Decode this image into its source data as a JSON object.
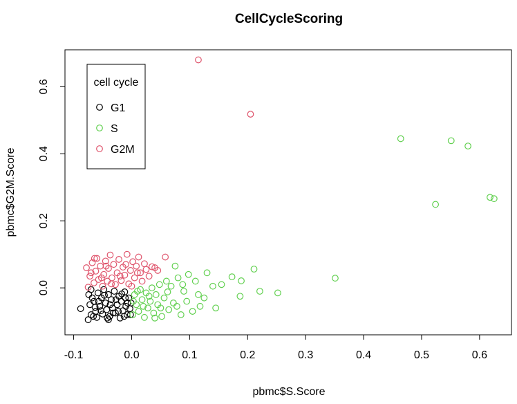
{
  "chart_data": {
    "type": "scatter",
    "title": "CellCycleScoring",
    "xlabel": "pbmc$S.Score",
    "ylabel": "pbmc$G2M.Score",
    "xlim": [
      -0.115,
      0.655
    ],
    "ylim": [
      -0.14,
      0.71
    ],
    "x_ticks": [
      "-0.1",
      "0.0",
      "0.1",
      "0.2",
      "0.3",
      "0.4",
      "0.5",
      "0.6"
    ],
    "x_tick_values": [
      -0.1,
      0.0,
      0.1,
      0.2,
      0.3,
      0.4,
      0.5,
      0.6
    ],
    "y_ticks": [
      "0.0",
      "0.2",
      "0.4",
      "0.6"
    ],
    "y_tick_values": [
      0.0,
      0.2,
      0.4,
      0.6
    ],
    "grid": false,
    "marker": "open-circle",
    "legend": {
      "title": "cell cycle",
      "placement": "top-left"
    },
    "series": [
      {
        "name": "G1",
        "color": "#000000",
        "points": [
          [
            -0.088,
            -0.062
          ],
          [
            -0.075,
            -0.095
          ],
          [
            -0.07,
            -0.08
          ],
          [
            -0.072,
            -0.05
          ],
          [
            -0.074,
            -0.02
          ],
          [
            -0.07,
            -0.005
          ],
          [
            -0.065,
            -0.04
          ],
          [
            -0.062,
            -0.07
          ],
          [
            -0.06,
            -0.088
          ],
          [
            -0.058,
            -0.015
          ],
          [
            -0.055,
            -0.055
          ],
          [
            -0.052,
            -0.03
          ],
          [
            -0.05,
            -0.078
          ],
          [
            -0.048,
            -0.005
          ],
          [
            -0.045,
            -0.045
          ],
          [
            -0.043,
            -0.065
          ],
          [
            -0.04,
            -0.02
          ],
          [
            -0.038,
            -0.085
          ],
          [
            -0.035,
            -0.035
          ],
          [
            -0.033,
            -0.06
          ],
          [
            -0.03,
            -0.01
          ],
          [
            -0.028,
            -0.075
          ],
          [
            -0.025,
            -0.05
          ],
          [
            -0.022,
            -0.025
          ],
          [
            -0.02,
            -0.09
          ],
          [
            -0.018,
            -0.04
          ],
          [
            -0.015,
            -0.068
          ],
          [
            -0.012,
            -0.012
          ],
          [
            -0.01,
            -0.055
          ],
          [
            -0.008,
            -0.08
          ],
          [
            -0.005,
            -0.03
          ],
          [
            -0.003,
            -0.062
          ],
          [
            -0.001,
            -0.045
          ],
          [
            -0.068,
            -0.03
          ],
          [
            -0.063,
            -0.058
          ],
          [
            -0.057,
            -0.04
          ],
          [
            -0.047,
            -0.022
          ],
          [
            -0.042,
            -0.09
          ],
          [
            -0.037,
            -0.05
          ],
          [
            -0.027,
            -0.035
          ],
          [
            -0.023,
            -0.07
          ],
          [
            -0.017,
            -0.018
          ],
          [
            -0.013,
            -0.085
          ],
          [
            -0.007,
            -0.045
          ],
          [
            -0.032,
            -0.075
          ],
          [
            -0.053,
            -0.068
          ],
          [
            -0.066,
            -0.085
          ],
          [
            -0.002,
            -0.08
          ],
          [
            -0.04,
            -0.095
          ],
          [
            -0.011,
            -0.03
          ]
        ]
      },
      {
        "name": "S",
        "color": "#61D04F",
        "points": [
          [
            0.464,
            0.445
          ],
          [
            0.551,
            0.439
          ],
          [
            0.58,
            0.423
          ],
          [
            0.524,
            0.249
          ],
          [
            0.618,
            0.27
          ],
          [
            0.625,
            0.266
          ],
          [
            0.351,
            0.029
          ],
          [
            0.252,
            -0.015
          ],
          [
            0.221,
            -0.01
          ],
          [
            0.211,
            0.056
          ],
          [
            0.187,
            -0.025
          ],
          [
            0.189,
            0.021
          ],
          [
            0.173,
            0.033
          ],
          [
            0.145,
            -0.06
          ],
          [
            0.155,
            0.01
          ],
          [
            0.14,
            0.005
          ],
          [
            0.13,
            0.045
          ],
          [
            0.125,
            -0.03
          ],
          [
            0.118,
            -0.055
          ],
          [
            0.11,
            0.02
          ],
          [
            0.105,
            -0.07
          ],
          [
            0.098,
            0.04
          ],
          [
            0.09,
            -0.01
          ],
          [
            0.085,
            -0.08
          ],
          [
            0.08,
            0.03
          ],
          [
            0.075,
            0.065
          ],
          [
            0.072,
            -0.045
          ],
          [
            0.068,
            0.005
          ],
          [
            0.064,
            -0.065
          ],
          [
            0.06,
            0.02
          ],
          [
            0.056,
            -0.03
          ],
          [
            0.052,
            -0.085
          ],
          [
            0.048,
            0.01
          ],
          [
            0.045,
            -0.05
          ],
          [
            0.042,
            -0.02
          ],
          [
            0.038,
            -0.075
          ],
          [
            0.035,
            0.0
          ],
          [
            0.032,
            -0.04
          ],
          [
            0.028,
            -0.06
          ],
          [
            0.025,
            -0.015
          ],
          [
            0.022,
            -0.088
          ],
          [
            0.018,
            -0.035
          ],
          [
            0.015,
            -0.005
          ],
          [
            0.012,
            -0.07
          ],
          [
            0.008,
            -0.05
          ],
          [
            0.005,
            -0.02
          ],
          [
            0.002,
            -0.08
          ],
          [
            0.003,
            -0.04
          ],
          [
            0.02,
            -0.055
          ],
          [
            0.04,
            -0.09
          ],
          [
            0.062,
            -0.012
          ],
          [
            0.078,
            -0.055
          ],
          [
            0.095,
            -0.04
          ],
          [
            0.115,
            -0.02
          ],
          [
            0.03,
            -0.025
          ],
          [
            0.05,
            -0.06
          ],
          [
            0.01,
            -0.01
          ],
          [
            0.088,
            0.01
          ]
        ]
      },
      {
        "name": "G2M",
        "color": "#DF536B",
        "points": [
          [
            0.115,
            0.68
          ],
          [
            0.205,
            0.518
          ],
          [
            -0.078,
            0.06
          ],
          [
            -0.075,
            0.002
          ],
          [
            -0.072,
            0.035
          ],
          [
            -0.068,
            0.075
          ],
          [
            -0.065,
            0.015
          ],
          [
            -0.062,
            0.05
          ],
          [
            -0.06,
            0.088
          ],
          [
            -0.057,
            0.025
          ],
          [
            -0.054,
            0.065
          ],
          [
            -0.05,
            0.005
          ],
          [
            -0.048,
            0.04
          ],
          [
            -0.045,
            0.08
          ],
          [
            -0.042,
            0.02
          ],
          [
            -0.04,
            0.058
          ],
          [
            -0.037,
            0.098
          ],
          [
            -0.034,
            0.03
          ],
          [
            -0.031,
            0.07
          ],
          [
            -0.028,
            0.01
          ],
          [
            -0.025,
            0.045
          ],
          [
            -0.022,
            0.085
          ],
          [
            -0.018,
            0.022
          ],
          [
            -0.015,
            0.062
          ],
          [
            -0.012,
            0.038
          ],
          [
            -0.008,
            0.1
          ],
          [
            -0.005,
            0.012
          ],
          [
            -0.002,
            0.052
          ],
          [
            0.002,
            0.078
          ],
          [
            0.005,
            0.03
          ],
          [
            0.008,
            0.065
          ],
          [
            0.012,
            0.092
          ],
          [
            0.015,
            0.045
          ],
          [
            0.018,
            0.02
          ],
          [
            0.022,
            0.072
          ],
          [
            0.025,
            0.055
          ],
          [
            0.03,
            0.035
          ],
          [
            0.035,
            0.063
          ],
          [
            0.04,
            0.06
          ],
          [
            0.045,
            0.052
          ],
          [
            0.058,
            0.092
          ],
          [
            -0.07,
            0.045
          ],
          [
            -0.052,
            0.03
          ],
          [
            -0.035,
            0.012
          ],
          [
            -0.02,
            0.035
          ],
          [
            -0.01,
            0.07
          ],
          [
            0.0,
            0.005
          ],
          [
            0.01,
            0.045
          ],
          [
            -0.044,
            0.065
          ],
          [
            -0.064,
            0.088
          ]
        ]
      }
    ]
  }
}
